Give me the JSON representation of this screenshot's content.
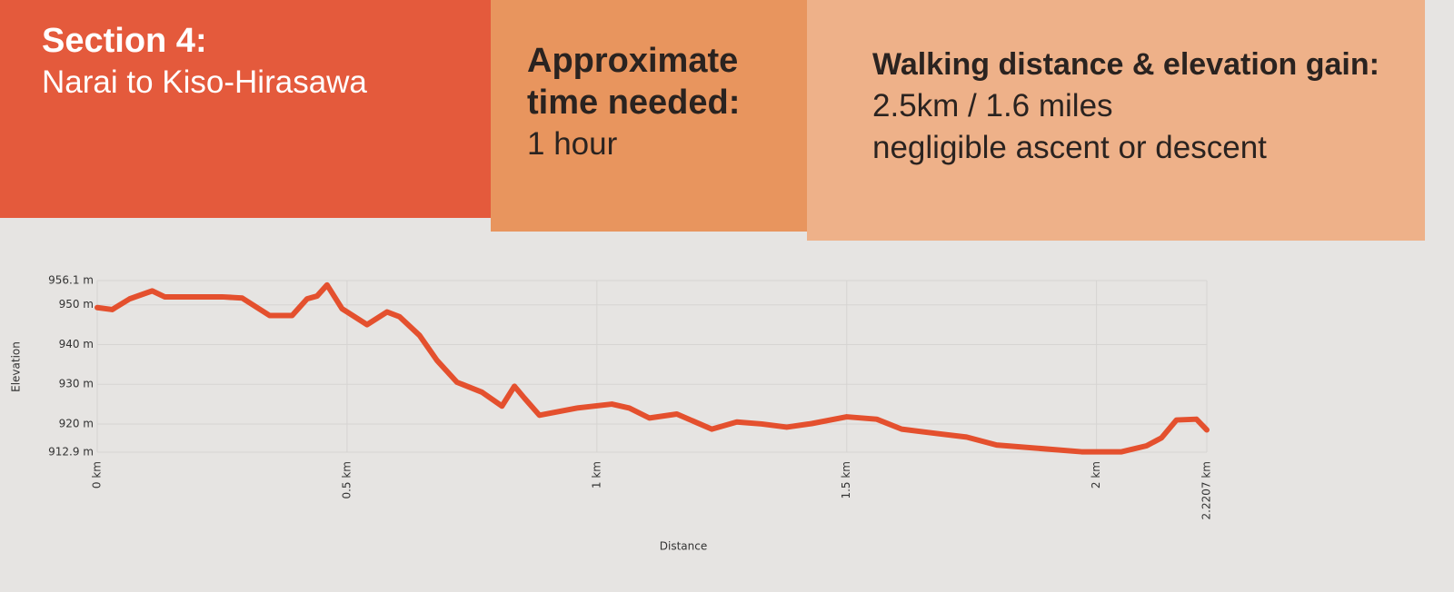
{
  "header": {
    "section": "Section 4:",
    "route": "Narai to Kiso-Hirasawa",
    "time_label": "Approximate time needed:",
    "time": "1 hour",
    "distance_label": "Walking distance & elevation gain:",
    "distance": "2.5km / 1.6 miles",
    "elevation": "negligible ascent or descent"
  },
  "chart_data": {
    "type": "line",
    "x_label": "Distance",
    "y_label": "Elevation",
    "color": "#e4502e",
    "grid": true,
    "xlim": [
      0,
      2.2207
    ],
    "xticks": [
      {
        "value": 0,
        "label": "0 km"
      },
      {
        "value": 0.5,
        "label": "0.5 km"
      },
      {
        "value": 1,
        "label": "1 km"
      },
      {
        "value": 1.5,
        "label": "1.5 km"
      },
      {
        "value": 2,
        "label": "2 km"
      },
      {
        "value": 2.2207,
        "label": "2.2207 km"
      }
    ],
    "ylim": [
      912.9,
      956.1
    ],
    "yticks": [
      {
        "value": 912.9,
        "label": "912.9 m"
      },
      {
        "value": 920,
        "label": "920 m"
      },
      {
        "value": 930,
        "label": "930 m"
      },
      {
        "value": 940,
        "label": "940 m"
      },
      {
        "value": 950,
        "label": "950 m"
      },
      {
        "value": 956.1,
        "label": "956.1 m"
      }
    ],
    "x": [
      0,
      0.03,
      0.065,
      0.11,
      0.135,
      0.25,
      0.29,
      0.345,
      0.39,
      0.42,
      0.44,
      0.46,
      0.49,
      0.54,
      0.58,
      0.605,
      0.645,
      0.68,
      0.72,
      0.77,
      0.81,
      0.835,
      0.855,
      0.885,
      0.96,
      1.03,
      1.065,
      1.105,
      1.16,
      1.23,
      1.28,
      1.33,
      1.38,
      1.43,
      1.5,
      1.56,
      1.61,
      1.68,
      1.74,
      1.8,
      1.97,
      2.05,
      2.1,
      2.13,
      2.16,
      2.2,
      2.2207
    ],
    "values": [
      949.3,
      948.8,
      951.5,
      953.5,
      952,
      952,
      951.7,
      947.3,
      947.3,
      951.5,
      952.2,
      955,
      949,
      945,
      948.2,
      947,
      942.3,
      936,
      930.5,
      928,
      924.5,
      929.5,
      926.5,
      922.2,
      924,
      925,
      924,
      921.5,
      922.5,
      918.7,
      920.5,
      920,
      919.2,
      920.1,
      921.8,
      921.2,
      918.7,
      917.6,
      916.7,
      914.7,
      913,
      913,
      914.5,
      916.5,
      921,
      921.2,
      918.5
    ]
  }
}
